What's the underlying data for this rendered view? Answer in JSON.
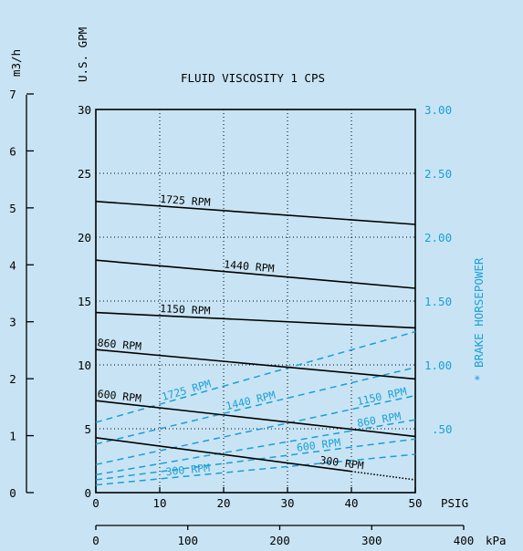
{
  "chart_data": {
    "type": "line",
    "title": "FLUID VISCOSITY 1 CPS",
    "x_axis_primary": {
      "label": "PSIG",
      "range": [
        0,
        50
      ],
      "ticks": [
        "0",
        "10",
        "20",
        "30",
        "40",
        "50"
      ]
    },
    "x_axis_secondary": {
      "label": "kPa",
      "range": [
        0,
        400
      ],
      "ticks": [
        "0",
        "100",
        "200",
        "300",
        "400"
      ]
    },
    "y_axis_left_outer": {
      "label": "m3/h",
      "range": [
        0,
        7
      ],
      "ticks": [
        "0",
        "1",
        "2",
        "3",
        "4",
        "5",
        "6",
        "7"
      ]
    },
    "y_axis_left_inner": {
      "label": "U.S. GPM",
      "range": [
        0,
        30
      ],
      "ticks": [
        "0",
        "5",
        "10",
        "15",
        "20",
        "25",
        "30"
      ]
    },
    "y_axis_right": {
      "label": "* BRAKE HORSEPOWER",
      "range": [
        0,
        3
      ],
      "ticks": [
        "3.00",
        "2.50",
        "2.00",
        "1.50",
        "1.00",
        ".50"
      ]
    },
    "grid": true,
    "flow_series": [
      {
        "name": "1725 RPM",
        "color": "#000000",
        "x": [
          0,
          50
        ],
        "y": [
          22.8,
          21.0
        ]
      },
      {
        "name": "1440 RPM",
        "color": "#000000",
        "x": [
          0,
          50
        ],
        "y": [
          18.2,
          16.0
        ]
      },
      {
        "name": "1150 RPM",
        "color": "#000000",
        "x": [
          0,
          50
        ],
        "y": [
          14.1,
          12.9
        ]
      },
      {
        "name": "860 RPM",
        "color": "#000000",
        "x": [
          0,
          50
        ],
        "y": [
          11.2,
          8.9
        ]
      },
      {
        "name": "600 RPM",
        "color": "#000000",
        "x": [
          0,
          50
        ],
        "y": [
          7.2,
          4.4
        ]
      },
      {
        "name": "300 RPM",
        "color": "#000000",
        "x": [
          0,
          50
        ],
        "y": [
          4.3,
          1.0
        ]
      }
    ],
    "hp_series": [
      {
        "name": "1725 RPM",
        "color": "#1a9fd6",
        "x": [
          0,
          50
        ],
        "y": [
          0.55,
          1.26
        ]
      },
      {
        "name": "1440 RPM",
        "color": "#1a9fd6",
        "x": [
          0,
          50
        ],
        "y": [
          0.38,
          0.98
        ]
      },
      {
        "name": "1150 RPM",
        "color": "#1a9fd6",
        "x": [
          0,
          50
        ],
        "y": [
          0.22,
          0.76
        ]
      },
      {
        "name": "860 RPM",
        "color": "#1a9fd6",
        "x": [
          0,
          50
        ],
        "y": [
          0.14,
          0.57
        ]
      },
      {
        "name": "600 RPM",
        "color": "#1a9fd6",
        "x": [
          0,
          50
        ],
        "y": [
          0.1,
          0.42
        ]
      },
      {
        "name": "300 RPM",
        "color": "#1a9fd6",
        "x": [
          0,
          50
        ],
        "y": [
          0.06,
          0.3
        ]
      }
    ]
  }
}
